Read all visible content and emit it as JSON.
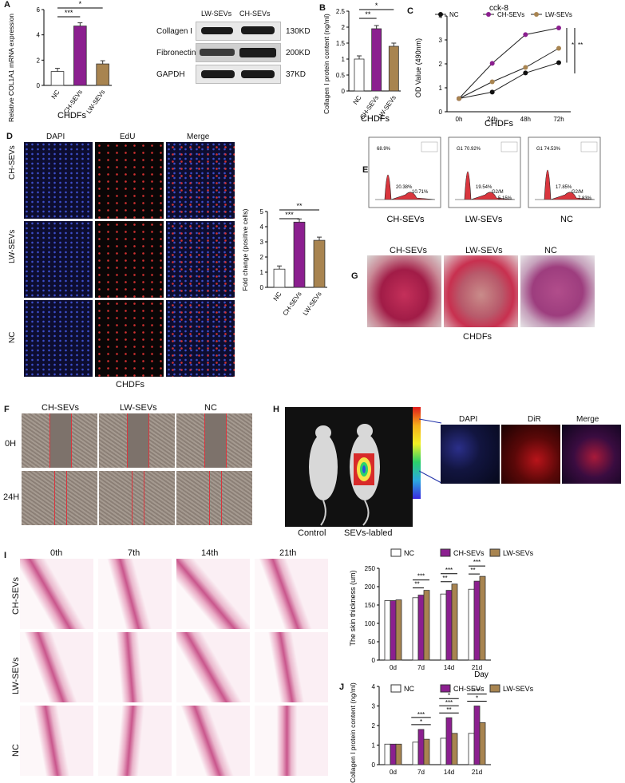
{
  "panels": {
    "A": {
      "letter": "A",
      "ylabel": "Relative COL1A1 mRNA expression",
      "xlabel": "CHDFs",
      "blot_cols": [
        "LW-SEVs",
        "CH-SEVs"
      ],
      "blot_rows": [
        "Collagen I",
        "Fibronectin",
        "GAPDH"
      ],
      "blot_kd": [
        "130KD",
        "200KD",
        "37KD"
      ],
      "sig": [
        "*",
        "***"
      ]
    },
    "B": {
      "letter": "B",
      "ylabel": "Collagen I protein content (ng/ml)",
      "xlabel": "CHDFs",
      "sig": [
        "*",
        "**"
      ]
    },
    "C": {
      "letter": "C",
      "title": "cck-8",
      "ylabel": "OD Value (490nm)",
      "xlabel": "CHDFs",
      "legend": [
        "NC",
        "CH-SEVs",
        "LW-SEVs"
      ],
      "sig": [
        "*",
        "**"
      ]
    },
    "D": {
      "letter": "D",
      "cols": [
        "DAPI",
        "EdU",
        "Merge"
      ],
      "rows": [
        "CH-SEVs",
        "LW-SEVs",
        "NC"
      ],
      "xlabel": "CHDFs",
      "ylabel": "Fold change (positive cells)",
      "sig": [
        "**",
        "***"
      ]
    },
    "E": {
      "letter": "E",
      "groups": [
        "CH-SEVs",
        "LW-SEVs",
        "NC"
      ],
      "g1": [
        "68.9%",
        "G1 70.92%",
        "G1   74.53%"
      ],
      "s": [
        "20.38%",
        "19.54%",
        "17.85%"
      ],
      "g2m": [
        "10.71%",
        "G2/M",
        "G2/M"
      ],
      "extra": [
        "",
        "5.15%",
        "7.83%"
      ]
    },
    "G": {
      "letter": "G",
      "groups": [
        "CH-SEVs",
        "LW-SEVs",
        "NC"
      ],
      "xlabel": "CHDFs"
    },
    "F": {
      "letter": "F",
      "cols": [
        "CH-SEVs",
        "LW-SEVs",
        "NC"
      ],
      "rows": [
        "0H",
        "24H"
      ]
    },
    "H": {
      "letter": "H",
      "mice": [
        "Control",
        "SEVs-labled"
      ],
      "cols": [
        "DAPI",
        "DiR",
        "Merge"
      ]
    },
    "I": {
      "letter": "I",
      "cols": [
        "0th",
        "7th",
        "14th",
        "21th"
      ],
      "rows": [
        "CH-SEVs",
        "LW-SEVs",
        "NC"
      ],
      "ylabel": "The skin thickness (um)",
      "xlabel": "Day",
      "legend": [
        "NC",
        "CH-SEVs",
        "LW-SEVs"
      ],
      "sig": [
        "***",
        "**",
        "***",
        "**",
        "***",
        "**"
      ]
    },
    "J": {
      "letter": "J",
      "ylabel": "Collagen I protein content (ng/ml)",
      "legend": [
        "NC",
        "CH-SEVs",
        "LW-SEVs"
      ],
      "sig": [
        "*",
        "***",
        "**",
        "***",
        "*",
        "*",
        "***"
      ]
    }
  },
  "colors": {
    "nc": "#ffffff",
    "ch": "#8b1f8f",
    "lw": "#a88450",
    "red": "#d9363e"
  },
  "chart_data": [
    {
      "id": "A",
      "type": "bar",
      "categories": [
        "NC",
        "CH-SEVs",
        "LW-SEVs"
      ],
      "values": [
        1.1,
        4.7,
        1.7
      ],
      "ylim": [
        0,
        6
      ],
      "yticks": [
        0,
        2,
        4,
        6
      ]
    },
    {
      "id": "B",
      "type": "bar",
      "categories": [
        "NC",
        "CH-SEVs",
        "LW-SEVs"
      ],
      "values": [
        1.0,
        1.95,
        1.4
      ],
      "ylim": [
        0,
        2.5
      ],
      "yticks": [
        0.0,
        0.5,
        1.0,
        1.5,
        2.0,
        2.5
      ]
    },
    {
      "id": "C",
      "type": "line",
      "x": [
        "0h",
        "24h",
        "48h",
        "72h"
      ],
      "ylim": [
        0,
        4
      ],
      "yticks": [
        0,
        1,
        2,
        3,
        4
      ],
      "series": [
        {
          "name": "NC",
          "values": [
            0.55,
            0.82,
            1.62,
            2.05
          ]
        },
        {
          "name": "CH-SEVs",
          "values": [
            0.55,
            2.02,
            3.22,
            3.5
          ]
        },
        {
          "name": "LW-SEVs",
          "values": [
            0.55,
            1.25,
            1.85,
            2.65
          ]
        }
      ]
    },
    {
      "id": "D",
      "type": "bar",
      "categories": [
        "NC",
        "CH-SEVs",
        "LW-SEVs"
      ],
      "values": [
        1.2,
        4.3,
        3.1
      ],
      "ylim": [
        0,
        5
      ],
      "yticks": [
        0,
        1,
        2,
        3,
        4,
        5
      ]
    },
    {
      "id": "I",
      "type": "bar",
      "categories": [
        "0d",
        "7d",
        "14d",
        "21d"
      ],
      "ylim": [
        0,
        250
      ],
      "yticks": [
        0,
        50,
        100,
        150,
        200,
        250
      ],
      "series": [
        {
          "name": "NC",
          "values": [
            162,
            170,
            180,
            193
          ]
        },
        {
          "name": "CH-SEVs",
          "values": [
            162,
            177,
            190,
            215
          ]
        },
        {
          "name": "LW-SEVs",
          "values": [
            164,
            190,
            207,
            228
          ]
        }
      ]
    },
    {
      "id": "J",
      "type": "bar",
      "categories": [
        "0d",
        "7d",
        "14d",
        "21d"
      ],
      "ylim": [
        0,
        4
      ],
      "yticks": [
        0,
        1,
        2,
        3,
        4
      ],
      "series": [
        {
          "name": "NC",
          "values": [
            1.05,
            1.15,
            1.35,
            1.6
          ]
        },
        {
          "name": "CH-SEVs",
          "values": [
            1.05,
            1.8,
            2.4,
            3.0
          ]
        },
        {
          "name": "LW-SEVs",
          "values": [
            1.05,
            1.3,
            1.6,
            2.15
          ]
        }
      ]
    }
  ]
}
